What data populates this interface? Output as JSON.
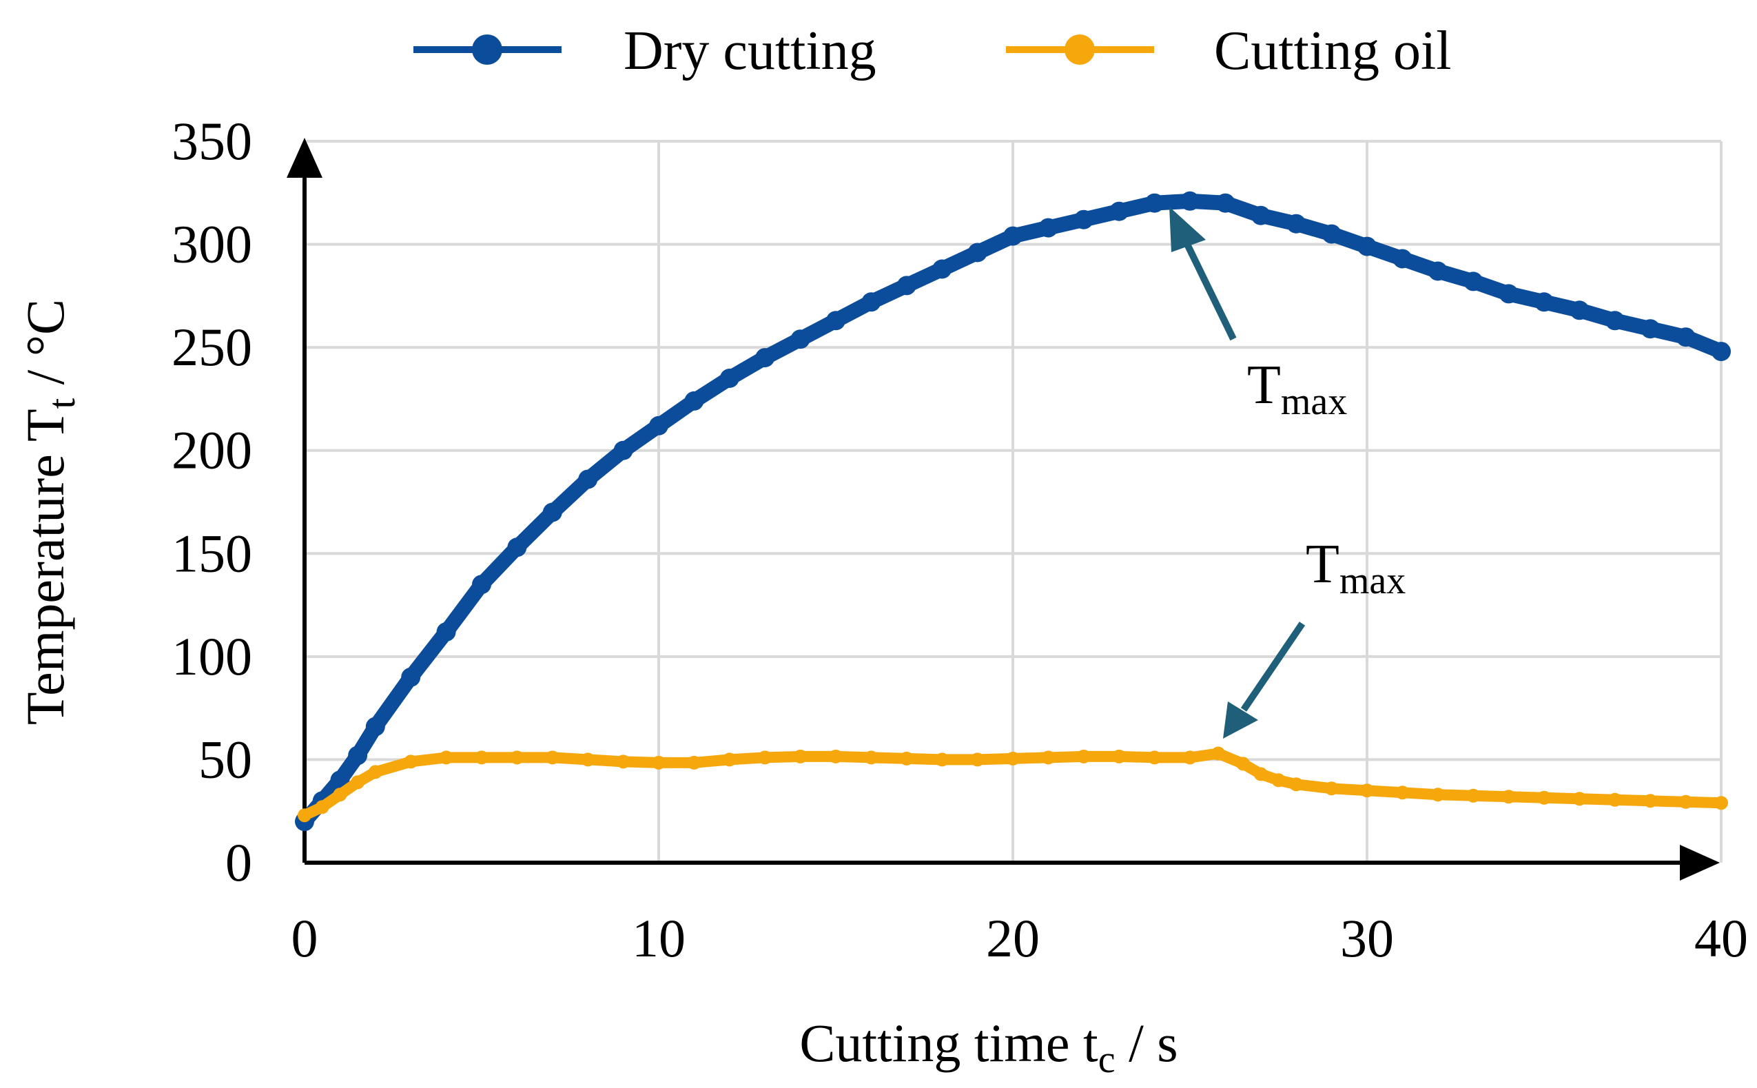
{
  "chart_data": {
    "type": "line",
    "title": "",
    "xlabel": "Cutting time t",
    "xlabel_sub": "c",
    "xlabel_unit": " / s",
    "ylabel": "Temperature T",
    "ylabel_sub": "t",
    "ylabel_unit": " / °C",
    "xlim": [
      0,
      40
    ],
    "ylim": [
      0,
      350
    ],
    "x_ticks": [
      "0",
      "10",
      "20",
      "30",
      "40"
    ],
    "y_ticks": [
      "0",
      "50",
      "100",
      "150",
      "200",
      "250",
      "300",
      "350"
    ],
    "grid": true,
    "legend_position": "top",
    "series": [
      {
        "name": "Dry cutting",
        "color": "#0b4c9b",
        "marker": "circle",
        "x": [
          0,
          0.5,
          1,
          1.5,
          2,
          3,
          4,
          5,
          6,
          7,
          8,
          9,
          10,
          11,
          12,
          13,
          14,
          15,
          16,
          17,
          18,
          19,
          20,
          21,
          22,
          23,
          24,
          25,
          26,
          27,
          28,
          29,
          30,
          31,
          32,
          33,
          34,
          35,
          36,
          37,
          38,
          39,
          40
        ],
        "y": [
          20,
          30,
          40,
          52,
          66,
          90,
          112,
          135,
          153,
          170,
          186,
          200,
          212,
          224,
          235,
          245,
          254,
          263,
          272,
          280,
          288,
          296,
          304,
          308,
          312,
          316,
          320,
          321,
          320,
          314,
          310,
          305,
          299,
          293,
          287,
          282,
          276,
          272,
          268,
          263,
          259,
          255,
          248
        ]
      },
      {
        "name": "Cutting oil",
        "color": "#f6a70b",
        "marker": "circle",
        "x": [
          0,
          0.5,
          1,
          1.5,
          2,
          3,
          4,
          5,
          6,
          7,
          8,
          9,
          10,
          11,
          12,
          13,
          14,
          15,
          16,
          17,
          18,
          19,
          20,
          21,
          22,
          23,
          24,
          25,
          25.8,
          26.5,
          27,
          27.5,
          28,
          29,
          30,
          31,
          32,
          33,
          34,
          35,
          36,
          37,
          38,
          39,
          40
        ],
        "y": [
          23,
          27,
          33,
          39,
          44,
          49,
          51,
          51,
          51,
          51,
          50,
          49,
          48.5,
          48.5,
          50,
          51,
          51.5,
          51.5,
          51,
          50.5,
          50,
          50,
          50.5,
          51,
          51.5,
          51.5,
          51,
          51,
          53,
          48,
          43,
          40,
          38,
          36,
          35,
          34,
          33,
          32.5,
          32,
          31.5,
          31,
          30.5,
          30,
          29.5,
          29
        ]
      }
    ],
    "annotations": [
      {
        "text": "T",
        "sub": "max",
        "target_series": "Dry cutting",
        "x": 24.5,
        "y": 318
      },
      {
        "text": "T",
        "sub": "max",
        "target_series": "Cutting oil",
        "x": 25.8,
        "y": 53
      }
    ],
    "annotation_color": "#1f5f79"
  }
}
